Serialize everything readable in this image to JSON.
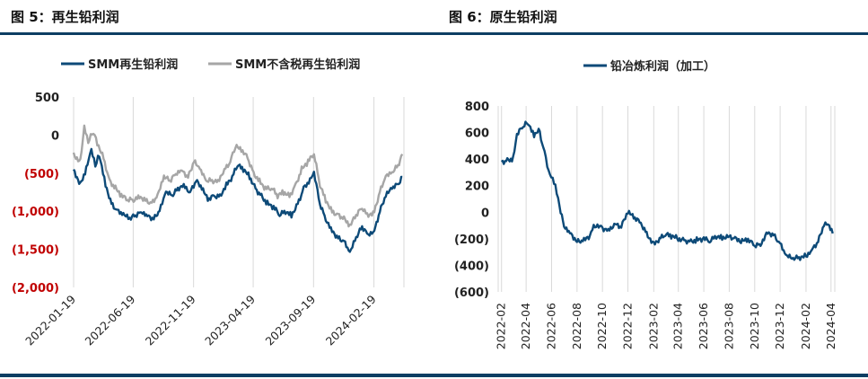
{
  "figures": [
    {
      "title": "图 5：再生铅利润"
    },
    {
      "title": "图 6：原生铅利润"
    }
  ],
  "colors": {
    "navy": "#0d4a78",
    "gray": "#a6a6a6",
    "negative": "#c00000",
    "rule": "#0d3e63"
  },
  "chart_data": [
    {
      "type": "line",
      "ylim": [
        -2000,
        500
      ],
      "yticks": [
        500,
        0,
        -500,
        -1000,
        -1500,
        -2000
      ],
      "ytick_labels": [
        "500",
        "0",
        "(500)",
        "(1,000)",
        "(1,500)",
        "(2,000)"
      ],
      "xlim": [
        "2022-01-19",
        "2024-05-05"
      ],
      "xtick_labels": [
        "2022-01-19",
        "2022-06-19",
        "2022-11-19",
        "2023-04-19",
        "2023-09-19",
        "2024-02-19"
      ],
      "legend_placement": "top",
      "grid": "vertical",
      "series": [
        {
          "name": "SMM再生铅利润",
          "points": [
            [
              "2022-01-19",
              -450
            ],
            [
              "2022-02-05",
              -650
            ],
            [
              "2022-02-20",
              -450
            ],
            [
              "2022-03-05",
              -200
            ],
            [
              "2022-03-15",
              -400
            ],
            [
              "2022-03-25",
              -250
            ],
            [
              "2022-04-10",
              -650
            ],
            [
              "2022-04-25",
              -900
            ],
            [
              "2022-05-10",
              -1000
            ],
            [
              "2022-05-25",
              -1050
            ],
            [
              "2022-06-10",
              -1100
            ],
            [
              "2022-06-25",
              -1050
            ],
            [
              "2022-07-10",
              -1000
            ],
            [
              "2022-07-25",
              -1050
            ],
            [
              "2022-08-10",
              -1100
            ],
            [
              "2022-08-25",
              -1000
            ],
            [
              "2022-09-10",
              -750
            ],
            [
              "2022-09-25",
              -800
            ],
            [
              "2022-10-10",
              -700
            ],
            [
              "2022-10-25",
              -650
            ],
            [
              "2022-11-10",
              -750
            ],
            [
              "2022-11-25",
              -600
            ],
            [
              "2022-12-10",
              -700
            ],
            [
              "2022-12-25",
              -850
            ],
            [
              "2023-01-10",
              -800
            ],
            [
              "2023-01-25",
              -800
            ],
            [
              "2023-02-10",
              -650
            ],
            [
              "2023-02-25",
              -550
            ],
            [
              "2023-03-10",
              -400
            ],
            [
              "2023-03-25",
              -450
            ],
            [
              "2023-04-10",
              -550
            ],
            [
              "2023-04-25",
              -700
            ],
            [
              "2023-05-10",
              -800
            ],
            [
              "2023-05-25",
              -900
            ],
            [
              "2023-06-10",
              -950
            ],
            [
              "2023-06-25",
              -1050
            ],
            [
              "2023-07-10",
              -1000
            ],
            [
              "2023-07-25",
              -1050
            ],
            [
              "2023-08-10",
              -900
            ],
            [
              "2023-08-25",
              -700
            ],
            [
              "2023-09-10",
              -600
            ],
            [
              "2023-09-20",
              -500
            ],
            [
              "2023-10-05",
              -900
            ],
            [
              "2023-10-20",
              -1100
            ],
            [
              "2023-11-05",
              -1250
            ],
            [
              "2023-11-20",
              -1350
            ],
            [
              "2023-12-05",
              -1400
            ],
            [
              "2023-12-20",
              -1550
            ],
            [
              "2024-01-05",
              -1350
            ],
            [
              "2024-01-20",
              -1200
            ],
            [
              "2024-02-05",
              -1300
            ],
            [
              "2024-02-20",
              -1250
            ],
            [
              "2024-03-05",
              -1000
            ],
            [
              "2024-03-20",
              -800
            ],
            [
              "2024-04-05",
              -700
            ],
            [
              "2024-04-20",
              -650
            ],
            [
              "2024-05-01",
              -550
            ]
          ]
        },
        {
          "name": "SMM不含税再生铅利润",
          "points": [
            [
              "2022-01-19",
              -250
            ],
            [
              "2022-02-05",
              -350
            ],
            [
              "2022-02-15",
              100
            ],
            [
              "2022-02-25",
              -100
            ],
            [
              "2022-03-10",
              50
            ],
            [
              "2022-03-20",
              -100
            ],
            [
              "2022-04-05",
              -300
            ],
            [
              "2022-04-20",
              -600
            ],
            [
              "2022-05-05",
              -700
            ],
            [
              "2022-05-20",
              -800
            ],
            [
              "2022-06-05",
              -850
            ],
            [
              "2022-06-20",
              -850
            ],
            [
              "2022-07-05",
              -800
            ],
            [
              "2022-07-20",
              -850
            ],
            [
              "2022-08-05",
              -900
            ],
            [
              "2022-08-20",
              -800
            ],
            [
              "2022-09-05",
              -550
            ],
            [
              "2022-09-20",
              -600
            ],
            [
              "2022-10-05",
              -500
            ],
            [
              "2022-10-20",
              -450
            ],
            [
              "2022-11-05",
              -550
            ],
            [
              "2022-11-20",
              -350
            ],
            [
              "2022-12-05",
              -450
            ],
            [
              "2022-12-20",
              -600
            ],
            [
              "2023-01-05",
              -600
            ],
            [
              "2023-01-20",
              -600
            ],
            [
              "2023-02-05",
              -450
            ],
            [
              "2023-02-20",
              -350
            ],
            [
              "2023-03-05",
              -150
            ],
            [
              "2023-03-20",
              -200
            ],
            [
              "2023-04-05",
              -300
            ],
            [
              "2023-04-20",
              -500
            ],
            [
              "2023-05-05",
              -600
            ],
            [
              "2023-05-20",
              -700
            ],
            [
              "2023-06-05",
              -700
            ],
            [
              "2023-06-20",
              -800
            ],
            [
              "2023-07-05",
              -750
            ],
            [
              "2023-07-20",
              -800
            ],
            [
              "2023-08-05",
              -650
            ],
            [
              "2023-08-20",
              -450
            ],
            [
              "2023-09-05",
              -350
            ],
            [
              "2023-09-20",
              -250
            ],
            [
              "2023-10-05",
              -650
            ],
            [
              "2023-10-20",
              -850
            ],
            [
              "2023-11-05",
              -1000
            ],
            [
              "2023-11-20",
              -1050
            ],
            [
              "2023-12-05",
              -1100
            ],
            [
              "2023-12-20",
              -1200
            ],
            [
              "2024-01-05",
              -1050
            ],
            [
              "2024-01-20",
              -950
            ],
            [
              "2024-02-05",
              -1050
            ],
            [
              "2024-02-20",
              -1000
            ],
            [
              "2024-03-05",
              -750
            ],
            [
              "2024-03-20",
              -550
            ],
            [
              "2024-04-05",
              -500
            ],
            [
              "2024-04-20",
              -400
            ],
            [
              "2024-05-01",
              -250
            ]
          ]
        }
      ]
    },
    {
      "type": "line",
      "ylim": [
        -600,
        800
      ],
      "yticks": [
        800,
        600,
        400,
        200,
        0,
        -200,
        -400,
        -600
      ],
      "ytick_labels": [
        "800",
        "600",
        "400",
        "200",
        "0",
        "(200)",
        "(400)",
        "(600)"
      ],
      "xlim": [
        "2022-01-24",
        "2024-04-10"
      ],
      "xtick_labels": [
        "2022-02",
        "2022-04",
        "2022-06",
        "2022-08",
        "2022-10",
        "2022-12",
        "2023-02",
        "2023-04",
        "2023-06",
        "2023-08",
        "2023-10",
        "2023-12",
        "2024-02",
        "2024-04"
      ],
      "legend_placement": "top",
      "grid": "vertical",
      "series": [
        {
          "name": "铅冶炼利润（加工）",
          "points": [
            [
              "2022-02-01",
              380
            ],
            [
              "2022-02-15",
              390
            ],
            [
              "2022-03-01",
              400
            ],
            [
              "2022-03-10",
              580
            ],
            [
              "2022-03-25",
              650
            ],
            [
              "2022-04-05",
              680
            ],
            [
              "2022-04-20",
              580
            ],
            [
              "2022-05-01",
              630
            ],
            [
              "2022-05-15",
              450
            ],
            [
              "2022-05-25",
              300
            ],
            [
              "2022-06-10",
              200
            ],
            [
              "2022-06-20",
              50
            ],
            [
              "2022-07-01",
              -100
            ],
            [
              "2022-07-15",
              -150
            ],
            [
              "2022-08-01",
              -220
            ],
            [
              "2022-08-15",
              -220
            ],
            [
              "2022-09-01",
              -180
            ],
            [
              "2022-09-10",
              -100
            ],
            [
              "2022-10-01",
              -120
            ],
            [
              "2022-10-15",
              -130
            ],
            [
              "2022-11-01",
              -90
            ],
            [
              "2022-11-15",
              -110
            ],
            [
              "2022-12-01",
              0
            ],
            [
              "2022-12-15",
              -40
            ],
            [
              "2023-01-01",
              -80
            ],
            [
              "2023-01-15",
              -160
            ],
            [
              "2023-02-01",
              -240
            ],
            [
              "2023-02-15",
              -200
            ],
            [
              "2023-03-01",
              -170
            ],
            [
              "2023-03-15",
              -180
            ],
            [
              "2023-04-01",
              -200
            ],
            [
              "2023-04-15",
              -210
            ],
            [
              "2023-05-01",
              -220
            ],
            [
              "2023-05-15",
              -210
            ],
            [
              "2023-06-01",
              -200
            ],
            [
              "2023-06-15",
              -220
            ],
            [
              "2023-07-01",
              -180
            ],
            [
              "2023-07-15",
              -190
            ],
            [
              "2023-08-01",
              -180
            ],
            [
              "2023-08-15",
              -200
            ],
            [
              "2023-09-01",
              -220
            ],
            [
              "2023-09-15",
              -210
            ],
            [
              "2023-10-01",
              -250
            ],
            [
              "2023-10-15",
              -240
            ],
            [
              "2023-11-01",
              -150
            ],
            [
              "2023-11-15",
              -170
            ],
            [
              "2023-12-01",
              -240
            ],
            [
              "2023-12-15",
              -330
            ],
            [
              "2024-01-01",
              -350
            ],
            [
              "2024-01-15",
              -340
            ],
            [
              "2024-02-01",
              -330
            ],
            [
              "2024-02-15",
              -280
            ],
            [
              "2024-03-01",
              -220
            ],
            [
              "2024-03-15",
              -100
            ],
            [
              "2024-03-25",
              -90
            ],
            [
              "2024-04-05",
              -160
            ]
          ]
        }
      ]
    }
  ]
}
